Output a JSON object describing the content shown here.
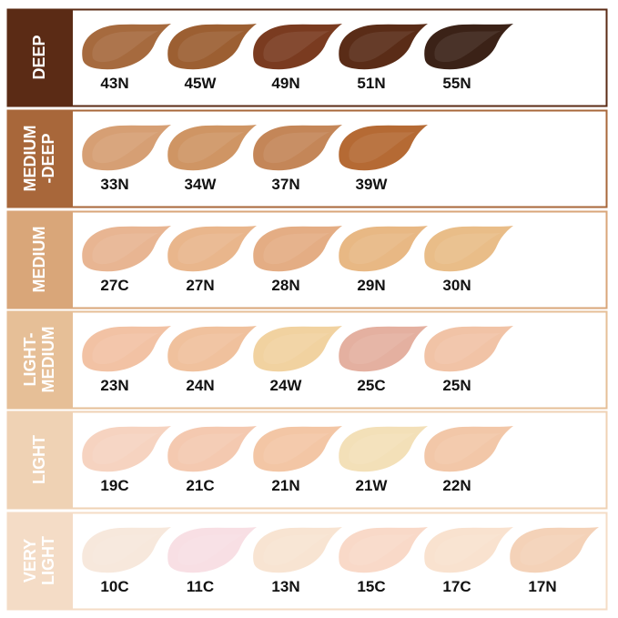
{
  "groups": [
    {
      "label": [
        "DEEP"
      ],
      "color": "#5b2b15",
      "shades": [
        {
          "name": "43N",
          "color": "#a66a3e"
        },
        {
          "name": "45W",
          "color": "#9c5f32"
        },
        {
          "name": "49N",
          "color": "#7a3b20"
        },
        {
          "name": "51N",
          "color": "#5a2c17"
        },
        {
          "name": "55N",
          "color": "#3b2217"
        }
      ]
    },
    {
      "label": [
        "MEDIUM",
        "-DEEP"
      ],
      "color": "#a8673a",
      "shades": [
        {
          "name": "33N",
          "color": "#d69f74"
        },
        {
          "name": "34W",
          "color": "#cf9564"
        },
        {
          "name": "37N",
          "color": "#c48658"
        },
        {
          "name": "39W",
          "color": "#b56a34"
        }
      ]
    },
    {
      "label": [
        "MEDIUM"
      ],
      "color": "#d9a679",
      "shades": [
        {
          "name": "27C",
          "color": "#e8b592"
        },
        {
          "name": "27N",
          "color": "#e9b68c"
        },
        {
          "name": "28N",
          "color": "#e4ad84"
        },
        {
          "name": "29N",
          "color": "#e8b884"
        },
        {
          "name": "30N",
          "color": "#e9bd88"
        }
      ]
    },
    {
      "label": [
        "LIGHT-",
        "MEDIUM"
      ],
      "color": "#e6bf97",
      "shades": [
        {
          "name": "23N",
          "color": "#f2c2a4"
        },
        {
          "name": "24N",
          "color": "#f0c19d"
        },
        {
          "name": "24W",
          "color": "#f1d2a0"
        },
        {
          "name": "25C",
          "color": "#e4b0a0"
        },
        {
          "name": "25N",
          "color": "#f1c3a6"
        }
      ]
    },
    {
      "label": [
        "LIGHT"
      ],
      "color": "#efd2b4",
      "shades": [
        {
          "name": "19C",
          "color": "#f6d3c0"
        },
        {
          "name": "21C",
          "color": "#f4c9b0"
        },
        {
          "name": "21N",
          "color": "#f3c6a5"
        },
        {
          "name": "21W",
          "color": "#f3e0b8"
        },
        {
          "name": "22N",
          "color": "#f2c7a8"
        }
      ]
    },
    {
      "label": [
        "VERY",
        "LIGHT"
      ],
      "color": "#f4dcc6",
      "shades": [
        {
          "name": "10C",
          "color": "#f7e8dc"
        },
        {
          "name": "11C",
          "color": "#f8dfe4"
        },
        {
          "name": "13N",
          "color": "#f8e4d2"
        },
        {
          "name": "15C",
          "color": "#f9d9c8"
        },
        {
          "name": "17C",
          "color": "#f9e2cf"
        },
        {
          "name": "17N",
          "color": "#f4d2b8"
        }
      ]
    }
  ]
}
